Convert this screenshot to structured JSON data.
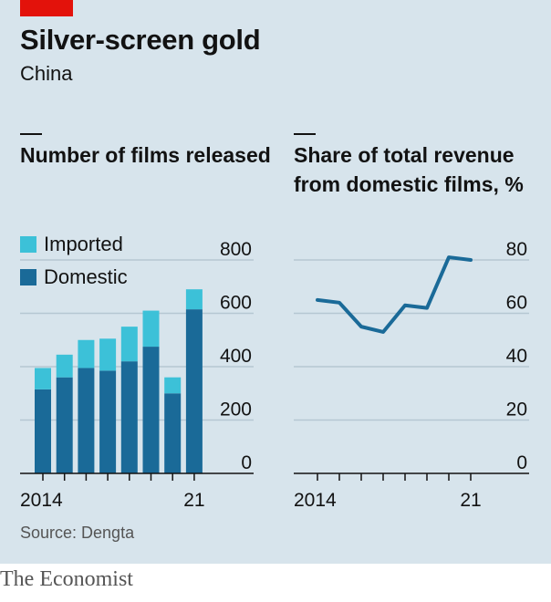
{
  "header": {
    "title": "Silver-screen gold",
    "subtitle": "China"
  },
  "colors": {
    "background": "#d7e4ec",
    "domestic": "#1a6a98",
    "imported": "#3cc1d8",
    "line": "#1a6a98",
    "gridline": "#b5c7d2",
    "brand_red": "#e3120b"
  },
  "chart_data": [
    {
      "type": "bar",
      "stacked": true,
      "title": "Number of films released",
      "categories": [
        "2014",
        "2015",
        "2016",
        "2017",
        "2018",
        "2019",
        "2020",
        "2021"
      ],
      "x_tick_labels": [
        "2014",
        "21"
      ],
      "series": [
        {
          "name": "Domestic",
          "values": [
            315,
            360,
            395,
            385,
            420,
            475,
            300,
            615
          ]
        },
        {
          "name": "Imported",
          "values": [
            80,
            85,
            105,
            120,
            130,
            135,
            60,
            75
          ]
        }
      ],
      "ylim": [
        0,
        800
      ],
      "yticks": [
        0,
        200,
        400,
        600,
        800
      ],
      "grid": true,
      "legend": "top-left"
    },
    {
      "type": "line",
      "title": "Share of total revenue from domestic films, %",
      "x": [
        2014,
        2015,
        2016,
        2017,
        2018,
        2019,
        2020,
        2021
      ],
      "x_tick_labels": [
        "2014",
        "21"
      ],
      "values": [
        65,
        64,
        55,
        53,
        63,
        62,
        81,
        80
      ],
      "ylim": [
        0,
        80
      ],
      "yticks": [
        0,
        20,
        40,
        60,
        80
      ],
      "grid": true
    }
  ],
  "footer": {
    "source": "Source: Dengta",
    "brand": "The Economist"
  }
}
